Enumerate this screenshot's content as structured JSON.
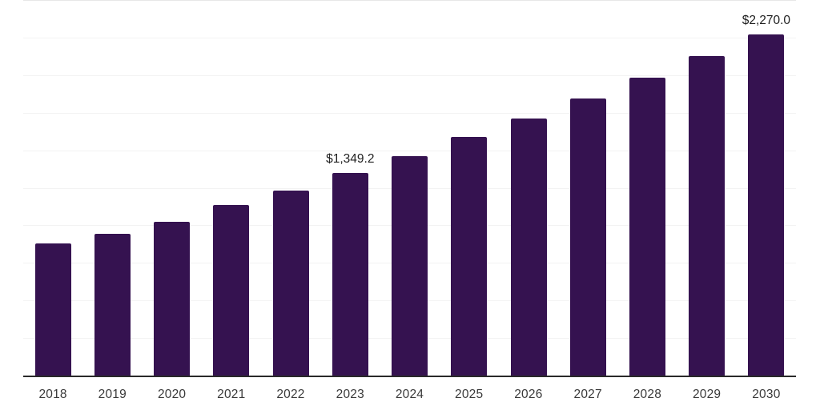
{
  "chart_data": {
    "type": "bar",
    "title": "",
    "xlabel": "",
    "ylabel": "",
    "categories": [
      "2018",
      "2019",
      "2020",
      "2021",
      "2022",
      "2023",
      "2024",
      "2025",
      "2026",
      "2027",
      "2028",
      "2029",
      "2030"
    ],
    "values": [
      878,
      943,
      1023,
      1138,
      1232,
      1349.2,
      1463,
      1587,
      1711,
      1844,
      1984,
      2126,
      2270.0
    ],
    "data_labels": [
      {
        "category": "2023",
        "text": "$1,349.2"
      },
      {
        "category": "2030",
        "text": "$2,270.0"
      }
    ],
    "ylim": [
      0,
      2500
    ],
    "gridline_step": 250,
    "grid": "horizontal",
    "legend": "none",
    "y_axis_labels": "none"
  },
  "colors": {
    "bar_fill": "#351250",
    "gridline": "#f3f3f3",
    "top_gridline": "#e7e7e7",
    "axis_line": "#2a2a2a",
    "tick_label": "#3a3a3a",
    "data_label": "#1f1f1f",
    "background": "#ffffff"
  }
}
